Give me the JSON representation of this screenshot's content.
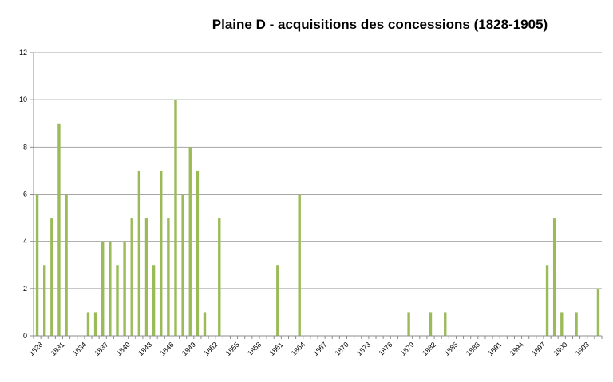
{
  "chart_data": {
    "type": "bar",
    "title": "Plaine D - acquisitions des concessions (1828-1905)",
    "xlabel": "",
    "ylabel": "",
    "ylim": [
      0,
      12
    ],
    "yticks": [
      "0",
      "2",
      "4",
      "6",
      "8",
      "10",
      "12"
    ],
    "grid": true,
    "legend": "none",
    "bar_color": "#9BBB59",
    "categories": [
      "1828",
      "1829",
      "1830",
      "1831",
      "1832",
      "1833",
      "1834",
      "1835",
      "1836",
      "1837",
      "1838",
      "1839",
      "1840",
      "1841",
      "1842",
      "1843",
      "1844",
      "1845",
      "1846",
      "1847",
      "1848",
      "1849",
      "1850",
      "1851",
      "1852",
      "1853",
      "1854",
      "1855",
      "1856",
      "1857",
      "1858",
      "1859",
      "1860",
      "1861",
      "1862",
      "1863",
      "1864",
      "1865",
      "1866",
      "1867",
      "1868",
      "1869",
      "1870",
      "1871",
      "1872",
      "1873",
      "1874",
      "1875",
      "1876",
      "1877",
      "1878",
      "1879",
      "1880",
      "1881",
      "1882",
      "1883",
      "1884",
      "1885",
      "1886",
      "1887",
      "1888",
      "1889",
      "1890",
      "1891",
      "1892",
      "1893",
      "1894",
      "1895",
      "1896",
      "1897",
      "1898",
      "1899",
      "1900",
      "1901",
      "1902",
      "1903",
      "1904",
      "1905"
    ],
    "xticks": [
      "1828",
      "1831",
      "1834",
      "1837",
      "1840",
      "1843",
      "1846",
      "1849",
      "1852",
      "1855",
      "1858",
      "1861",
      "1864",
      "1867",
      "1870",
      "1873",
      "1876",
      "1879",
      "1882",
      "1885",
      "1888",
      "1891",
      "1894",
      "1897",
      "1900",
      "1903"
    ],
    "values": [
      6,
      3,
      5,
      9,
      6,
      0,
      0,
      1,
      1,
      4,
      4,
      3,
      4,
      5,
      7,
      5,
      3,
      7,
      5,
      10,
      6,
      8,
      7,
      1,
      0,
      5,
      0,
      0,
      0,
      0,
      0,
      0,
      0,
      3,
      0,
      0,
      6,
      0,
      0,
      0,
      0,
      0,
      0,
      0,
      0,
      0,
      0,
      0,
      0,
      0,
      0,
      1,
      0,
      0,
      1,
      0,
      1,
      0,
      0,
      0,
      0,
      0,
      0,
      0,
      0,
      0,
      0,
      0,
      0,
      0,
      3,
      5,
      1,
      0,
      1,
      0,
      0,
      2
    ]
  }
}
